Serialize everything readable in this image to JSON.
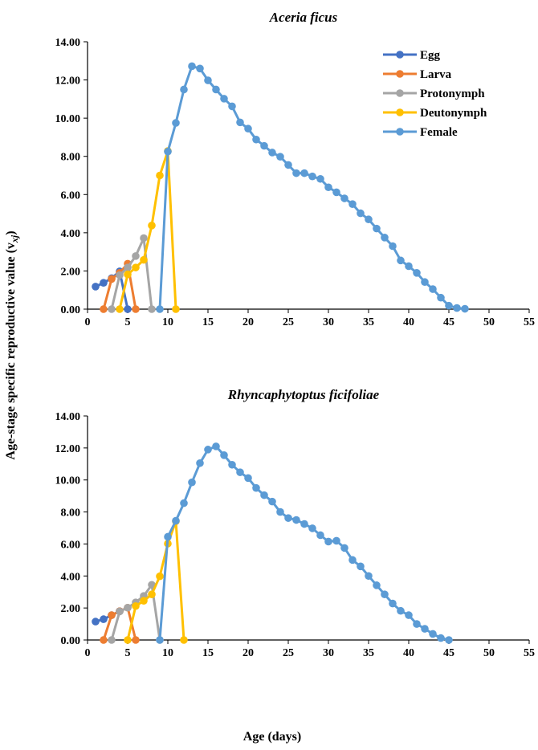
{
  "ylabel": "Age-stage specific reproductive value (v",
  "ylabel_sub": "xj",
  "ylabel_close": ")",
  "xlabel": "Age (days)",
  "chart_data": [
    {
      "type": "line",
      "title": "Aceria ficus",
      "xlim": [
        0,
        55
      ],
      "ylim": [
        0,
        14
      ],
      "xticks": [
        "0",
        "5",
        "10",
        "15",
        "20",
        "25",
        "30",
        "35",
        "40",
        "45",
        "50",
        "55"
      ],
      "yticks": [
        "0.00",
        "2.00",
        "4.00",
        "6.00",
        "8.00",
        "10.00",
        "12.00",
        "14.00"
      ],
      "legend_position": "top-right",
      "series": [
        {
          "name": "Egg",
          "color": "#4472C4",
          "x": [
            1,
            2,
            3,
            4,
            5
          ],
          "y": [
            1.18,
            1.38,
            1.62,
            1.98,
            0
          ]
        },
        {
          "name": "Larva",
          "color": "#ED7D31",
          "x": [
            2,
            3,
            4,
            5,
            6
          ],
          "y": [
            0,
            1.58,
            1.9,
            2.38,
            0
          ]
        },
        {
          "name": "Protonymph",
          "color": "#A5A5A5",
          "x": [
            3,
            4,
            5,
            6,
            7,
            8
          ],
          "y": [
            0,
            1.78,
            2.18,
            2.78,
            3.72,
            0
          ]
        },
        {
          "name": "Deutonymph",
          "color": "#FFC000",
          "x": [
            4,
            5,
            6,
            7,
            8,
            9,
            10,
            11
          ],
          "y": [
            0,
            1.82,
            2.18,
            2.58,
            4.38,
            7.0,
            8.28,
            0
          ]
        },
        {
          "name": "Female",
          "color": "#5B9BD5",
          "x": [
            9,
            10,
            11,
            12,
            13,
            14,
            15,
            16,
            17,
            18,
            19,
            20,
            21,
            22,
            23,
            24,
            25,
            26,
            27,
            28,
            29,
            30,
            31,
            32,
            33,
            34,
            35,
            36,
            37,
            38,
            39,
            40,
            41,
            42,
            43,
            44,
            45,
            46,
            47
          ],
          "y": [
            0,
            8.25,
            9.75,
            11.5,
            12.72,
            12.6,
            11.98,
            11.5,
            11.02,
            10.62,
            9.78,
            9.45,
            8.88,
            8.55,
            8.2,
            7.98,
            7.55,
            7.12,
            7.12,
            6.95,
            6.82,
            6.38,
            6.12,
            5.8,
            5.5,
            5.02,
            4.7,
            4.22,
            3.75,
            3.3,
            2.55,
            2.25,
            1.9,
            1.42,
            1.05,
            0.6,
            0.18,
            0.06,
            0.02
          ]
        }
      ]
    },
    {
      "type": "line",
      "title": "Rhyncaphytoptus ficifoliae",
      "xlim": [
        0,
        55
      ],
      "ylim": [
        0,
        14
      ],
      "xticks": [
        "0",
        "5",
        "10",
        "15",
        "20",
        "25",
        "30",
        "35",
        "40",
        "45",
        "50",
        "55"
      ],
      "yticks": [
        "0.00",
        "2.00",
        "4.00",
        "6.00",
        "8.00",
        "10.00",
        "12.00",
        "14.00"
      ],
      "series": [
        {
          "name": "Egg",
          "color": "#4472C4",
          "x": [
            1,
            2,
            3,
            4
          ],
          "y": [
            1.15,
            1.3,
            1.55,
            1.8
          ]
        },
        {
          "name": "Larva",
          "color": "#ED7D31",
          "x": [
            2,
            3,
            4,
            5,
            6
          ],
          "y": [
            0,
            1.55,
            1.8,
            2.02,
            0
          ]
        },
        {
          "name": "Protonymph",
          "color": "#A5A5A5",
          "x": [
            3,
            4,
            5,
            6,
            7,
            8,
            9
          ],
          "y": [
            0,
            1.78,
            2.02,
            2.35,
            2.75,
            3.45,
            0
          ]
        },
        {
          "name": "Deutonymph",
          "color": "#FFC000",
          "x": [
            5,
            6,
            7,
            8,
            9,
            10,
            11,
            12
          ],
          "y": [
            0,
            2.12,
            2.45,
            2.85,
            3.98,
            6.02,
            7.42,
            0
          ]
        },
        {
          "name": "Female",
          "color": "#5B9BD5",
          "x": [
            9,
            10,
            11,
            12,
            13,
            14,
            15,
            16,
            17,
            18,
            19,
            20,
            21,
            22,
            23,
            24,
            25,
            26,
            27,
            28,
            29,
            30,
            31,
            32,
            33,
            34,
            35,
            36,
            37,
            38,
            39,
            40,
            41,
            42,
            43,
            44,
            45
          ],
          "y": [
            0,
            6.45,
            7.45,
            8.55,
            9.85,
            11.05,
            11.9,
            12.1,
            11.55,
            10.95,
            10.48,
            10.12,
            9.5,
            9.05,
            8.65,
            8.0,
            7.62,
            7.5,
            7.25,
            6.98,
            6.55,
            6.15,
            6.2,
            5.75,
            5.0,
            4.6,
            4.0,
            3.42,
            2.85,
            2.28,
            1.82,
            1.55,
            1.0,
            0.7,
            0.38,
            0.12,
            0.0
          ]
        }
      ]
    }
  ]
}
